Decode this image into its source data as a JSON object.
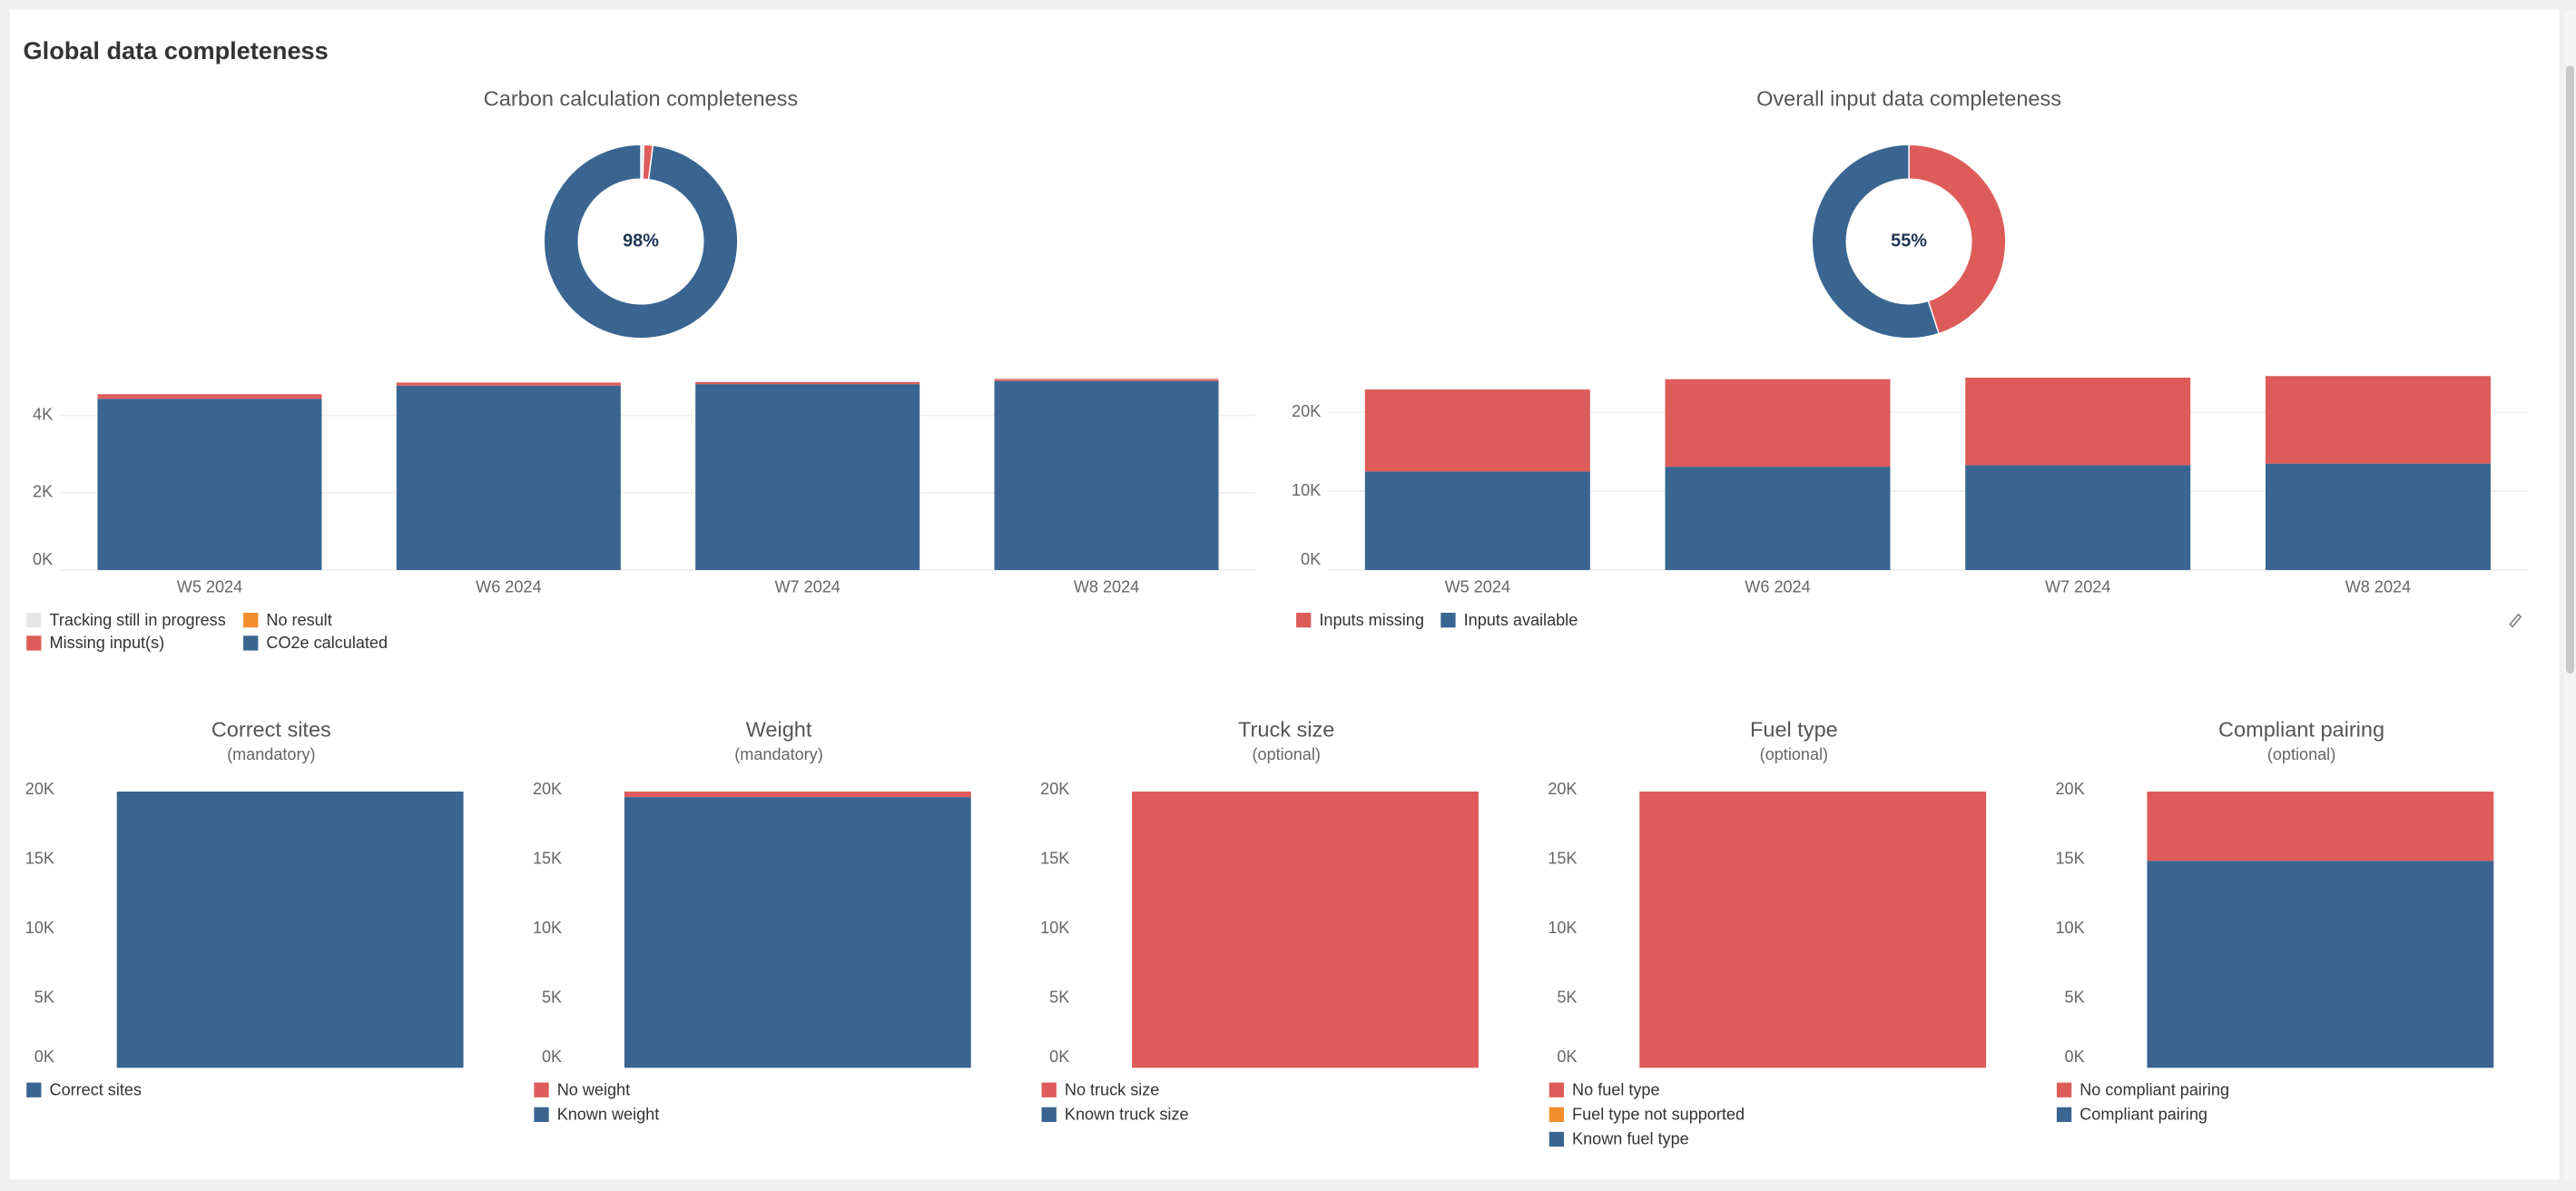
{
  "title": "Global data completeness",
  "chart_data": [
    {
      "type": "donut",
      "title": "Carbon calculation completeness",
      "center_label": "98%",
      "values": [
        0.5,
        0,
        1.5,
        98
      ],
      "colors": [
        "#e6e6e6",
        "#f28e2b",
        "#dd5c5a",
        "#3a6591"
      ]
    },
    {
      "type": "bar",
      "stacked": true,
      "grid": true,
      "categories": [
        "W5 2024",
        "W6 2024",
        "W7 2024",
        "W8 2024"
      ],
      "series": [
        {
          "name": "Tracking still in progress",
          "color": "#e6e6e6",
          "values": [
            0,
            0,
            30,
            40
          ]
        },
        {
          "name": "No result",
          "color": "#f28e2b",
          "values": [
            0,
            0,
            0,
            0
          ]
        },
        {
          "name": "Missing input(s)",
          "color": "#dd5c5a",
          "values": [
            120,
            80,
            50,
            50
          ]
        },
        {
          "name": "CO2e calculated",
          "color": "#3a6591",
          "values": [
            4430,
            4770,
            4810,
            4890
          ]
        }
      ],
      "ylim": [
        0,
        5100
      ],
      "yticks": [
        {
          "value": 0,
          "label": "0K"
        },
        {
          "value": 2000,
          "label": "2K"
        },
        {
          "value": 4000,
          "label": "4K"
        }
      ]
    },
    {
      "type": "donut",
      "title": "Overall input data completeness",
      "center_label": "55%",
      "values": [
        45,
        55
      ],
      "colors": [
        "#dd5c5a",
        "#3a6591"
      ]
    },
    {
      "type": "bar",
      "stacked": true,
      "grid": true,
      "categories": [
        "W5 2024",
        "W6 2024",
        "W7 2024",
        "W8 2024"
      ],
      "series": [
        {
          "name": "Inputs missing",
          "color": "#dd5c5a",
          "values": [
            10400,
            11100,
            11100,
            11100
          ]
        },
        {
          "name": "Inputs available",
          "color": "#3a6591",
          "values": [
            12500,
            13100,
            13300,
            13500
          ]
        }
      ],
      "ylim": [
        0,
        25000
      ],
      "yticks": [
        {
          "value": 0,
          "label": "0K"
        },
        {
          "value": 10000,
          "label": "10K"
        },
        {
          "value": 20000,
          "label": "20K"
        }
      ]
    },
    {
      "type": "bar",
      "stacked": true,
      "grid": false,
      "title": "Correct sites",
      "subtitle": "(mandatory)",
      "series": [
        {
          "name": "Correct sites",
          "color": "#3a6591",
          "values": [
            19900
          ]
        }
      ],
      "ylim": [
        0,
        20000
      ],
      "yticks": [
        {
          "value": 0,
          "label": "0K"
        },
        {
          "value": 5000,
          "label": "5K"
        },
        {
          "value": 10000,
          "label": "10K"
        },
        {
          "value": 15000,
          "label": "15K"
        },
        {
          "value": 20000,
          "label": "20K"
        }
      ]
    },
    {
      "type": "bar",
      "stacked": true,
      "grid": false,
      "title": "Weight",
      "subtitle": "(mandatory)",
      "series": [
        {
          "name": "No weight",
          "color": "#dd5c5a",
          "values": [
            400
          ]
        },
        {
          "name": "Known weight",
          "color": "#3a6591",
          "values": [
            19500
          ]
        }
      ],
      "ylim": [
        0,
        20000
      ],
      "yticks": [
        {
          "value": 0,
          "label": "0K"
        },
        {
          "value": 5000,
          "label": "5K"
        },
        {
          "value": 10000,
          "label": "10K"
        },
        {
          "value": 15000,
          "label": "15K"
        },
        {
          "value": 20000,
          "label": "20K"
        }
      ]
    },
    {
      "type": "bar",
      "stacked": true,
      "grid": false,
      "title": "Truck size",
      "subtitle": "(optional)",
      "series": [
        {
          "name": "No truck size",
          "color": "#dd5c5a",
          "values": [
            19900
          ]
        },
        {
          "name": "Known truck size",
          "color": "#3a6591",
          "values": [
            0
          ]
        }
      ],
      "ylim": [
        0,
        20000
      ],
      "yticks": [
        {
          "value": 0,
          "label": "0K"
        },
        {
          "value": 5000,
          "label": "5K"
        },
        {
          "value": 10000,
          "label": "10K"
        },
        {
          "value": 15000,
          "label": "15K"
        },
        {
          "value": 20000,
          "label": "20K"
        }
      ]
    },
    {
      "type": "bar",
      "stacked": true,
      "grid": false,
      "title": "Fuel type",
      "subtitle": "(optional)",
      "series": [
        {
          "name": "No fuel type",
          "color": "#dd5c5a",
          "values": [
            19900
          ]
        },
        {
          "name": "Fuel type not supported",
          "color": "#f28e2b",
          "values": [
            0
          ]
        },
        {
          "name": "Known fuel type",
          "color": "#3a6591",
          "values": [
            0
          ]
        }
      ],
      "ylim": [
        0,
        20000
      ],
      "yticks": [
        {
          "value": 0,
          "label": "0K"
        },
        {
          "value": 5000,
          "label": "5K"
        },
        {
          "value": 10000,
          "label": "10K"
        },
        {
          "value": 15000,
          "label": "15K"
        },
        {
          "value": 20000,
          "label": "20K"
        }
      ]
    },
    {
      "type": "bar",
      "stacked": true,
      "grid": false,
      "title": "Compliant pairing",
      "subtitle": "(optional)",
      "series": [
        {
          "name": "No compliant pairing",
          "color": "#dd5c5a",
          "values": [
            5000
          ]
        },
        {
          "name": "Compliant pairing",
          "color": "#3a6591",
          "values": [
            14900
          ]
        }
      ],
      "ylim": [
        0,
        20000
      ],
      "yticks": [
        {
          "value": 0,
          "label": "0K"
        },
        {
          "value": 5000,
          "label": "5K"
        },
        {
          "value": 10000,
          "label": "10K"
        },
        {
          "value": 15000,
          "label": "15K"
        },
        {
          "value": 20000,
          "label": "20K"
        }
      ]
    }
  ]
}
